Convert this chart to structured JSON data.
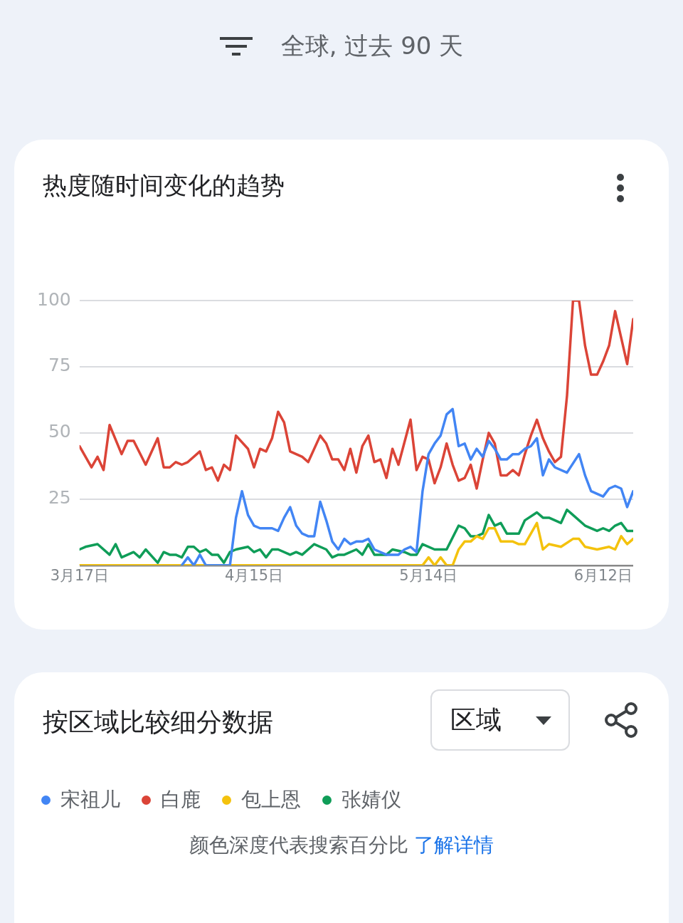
{
  "chart_data": {
    "type": "line",
    "title": "热度随时间变化的趋势",
    "subtitle": "全球, 过去 90 天",
    "annotations": [
      "按区域比较细分数据",
      "区域",
      "颜色深度代表搜索百分比",
      "了解详情"
    ],
    "xlim": [
      "--03-17",
      "--06-17"
    ],
    "xticks": [
      {
        "value": "--03-17",
        "label": "3月17日"
      },
      {
        "value": "--04-15",
        "label": "4月15日"
      },
      {
        "value": "--05-14",
        "label": "5月14日"
      },
      {
        "value": "--06-12",
        "label": "6月12日"
      }
    ],
    "ylim": [
      0,
      100
    ],
    "yticks": [
      {
        "value": 0,
        "label": null
      },
      25,
      50,
      75,
      100
    ],
    "grid": "y",
    "legend": "bottom",
    "marker": "none",
    "series": [
      {
        "name": "宋祖儿",
        "color": "#4285f4",
        "x": [
          "--04-03",
          "--04-04",
          "--04-05",
          "--04-06",
          "--04-07",
          "--04-11",
          "--04-12",
          "--04-13",
          "--04-14",
          "--04-15",
          "--04-16",
          "--04-17",
          "--04-18",
          "--04-19",
          "--04-20",
          "--04-21",
          "--04-22",
          "--04-23",
          "--04-24",
          "--04-25",
          "--04-26",
          "--04-27",
          "--04-28",
          "--04-29",
          "--04-30",
          "--05-01",
          "--05-02",
          "--05-03",
          "--05-04",
          "--05-05",
          "--05-07",
          "--05-09",
          "--05-10",
          "--05-11",
          "--05-12",
          "--05-13",
          "--05-14",
          "--05-15",
          "--05-16",
          "--05-17",
          "--05-18",
          "--05-19",
          "--05-20",
          "--05-21",
          "--05-22",
          "--05-23",
          "--05-24",
          "--05-25",
          "--05-26",
          "--05-27",
          "--05-28",
          "--05-29",
          "--05-30",
          "--05-31",
          "--06-01",
          "--06-02",
          "--06-03",
          "--06-04",
          "--06-06",
          "--06-08",
          "--06-09",
          "--06-10",
          "--06-12",
          "--06-13",
          "--06-14",
          "--06-15",
          "--06-16",
          "--06-17"
        ],
        "values": [
          0,
          3,
          0,
          4,
          0,
          0,
          18,
          28,
          19,
          15,
          14,
          14,
          14,
          13,
          18,
          22,
          15,
          12,
          11,
          11,
          24,
          17,
          9,
          6,
          10,
          8,
          9,
          9,
          10,
          6,
          4,
          4,
          6,
          7,
          5,
          28,
          42,
          46,
          49,
          57,
          59,
          45,
          46,
          40,
          44,
          41,
          47,
          44,
          40,
          40,
          42,
          42,
          44,
          45,
          48,
          34,
          40,
          37,
          35,
          42,
          34,
          28,
          26,
          29,
          30,
          29,
          22,
          28
        ]
      },
      {
        "name": "白鹿",
        "color": "#db4437",
        "x": [
          "--03-17",
          "--03-19",
          "--03-20",
          "--03-21",
          "--03-22",
          "--03-24",
          "--03-25",
          "--03-26",
          "--03-28",
          "--03-30",
          "--03-31",
          "--04-01",
          "--04-02",
          "--04-03",
          "--04-04",
          "--04-06",
          "--04-07",
          "--04-08",
          "--04-09",
          "--04-10",
          "--04-11",
          "--04-12",
          "--04-14",
          "--04-15",
          "--04-16",
          "--04-17",
          "--04-18",
          "--04-19",
          "--04-20",
          "--04-21",
          "--04-23",
          "--04-24",
          "--04-26",
          "--04-27",
          "--04-28",
          "--04-29",
          "--04-30",
          "--05-01",
          "--05-02",
          "--05-03",
          "--05-04",
          "--05-05",
          "--05-06",
          "--05-07",
          "--05-08",
          "--05-09",
          "--05-11",
          "--05-12",
          "--05-13",
          "--05-14",
          "--05-15",
          "--05-16",
          "--05-17",
          "--05-18",
          "--05-19",
          "--05-20",
          "--05-21",
          "--05-22",
          "--05-23",
          "--05-24",
          "--05-25",
          "--05-26",
          "--05-27",
          "--05-28",
          "--05-29",
          "--05-30",
          "--05-31",
          "--06-01",
          "--06-02",
          "--06-03",
          "--06-04",
          "--06-05",
          "--06-06",
          "--06-07",
          "--06-08",
          "--06-09",
          "--06-10",
          "--06-11",
          "--06-12",
          "--06-13",
          "--06-14",
          "--06-15",
          "--06-16",
          "--06-17"
        ],
        "values": [
          45,
          37,
          41,
          36,
          53,
          42,
          47,
          47,
          38,
          48,
          37,
          37,
          39,
          38,
          39,
          43,
          36,
          37,
          32,
          38,
          36,
          49,
          44,
          37,
          44,
          43,
          48,
          58,
          54,
          43,
          41,
          39,
          49,
          46,
          40,
          40,
          36,
          44,
          35,
          45,
          49,
          39,
          40,
          33,
          44,
          38,
          55,
          36,
          41,
          40,
          31,
          37,
          46,
          38,
          32,
          33,
          38,
          29,
          40,
          50,
          46,
          34,
          34,
          36,
          34,
          42,
          49,
          55,
          48,
          43,
          39,
          41,
          64,
          100,
          100,
          83,
          72,
          72,
          77,
          83,
          96,
          86,
          76,
          93
        ]
      },
      {
        "name": "包上恩",
        "color": "#f4c20d",
        "x": [
          "--03-17",
          "--05-13",
          "--05-14",
          "--05-15",
          "--05-16",
          "--05-17",
          "--05-18",
          "--05-19",
          "--05-20",
          "--05-21",
          "--05-22",
          "--05-23",
          "--05-24",
          "--05-25",
          "--05-26",
          "--05-28",
          "--05-29",
          "--05-30",
          "--06-01",
          "--06-02",
          "--06-03",
          "--06-05",
          "--06-07",
          "--06-08",
          "--06-09",
          "--06-11",
          "--06-13",
          "--06-14",
          "--06-15",
          "--06-16",
          "--06-17"
        ],
        "values": [
          0,
          0,
          3,
          0,
          3,
          0,
          0,
          6,
          9,
          9,
          11,
          10,
          14,
          14,
          9,
          9,
          8,
          8,
          16,
          6,
          8,
          7,
          10,
          10,
          7,
          6,
          7,
          6,
          11,
          8,
          10
        ]
      },
      {
        "name": "张婧仪",
        "color": "#0f9d58",
        "x": [
          "--03-17",
          "--03-18",
          "--03-20",
          "--03-22",
          "--03-23",
          "--03-24",
          "--03-26",
          "--03-27",
          "--03-28",
          "--03-30",
          "--03-31",
          "--04-01",
          "--04-02",
          "--04-03",
          "--04-04",
          "--04-05",
          "--04-06",
          "--04-07",
          "--04-08",
          "--04-09",
          "--04-10",
          "--04-11",
          "--04-12",
          "--04-14",
          "--04-15",
          "--04-16",
          "--04-17",
          "--04-18",
          "--04-19",
          "--04-21",
          "--04-22",
          "--04-23",
          "--04-25",
          "--04-27",
          "--04-28",
          "--04-29",
          "--04-30",
          "--05-02",
          "--05-03",
          "--05-04",
          "--05-05",
          "--05-07",
          "--05-08",
          "--05-10",
          "--05-11",
          "--05-12",
          "--05-13",
          "--05-15",
          "--05-17",
          "--05-19",
          "--05-20",
          "--05-21",
          "--05-22",
          "--05-23",
          "--05-24",
          "--05-25",
          "--05-26",
          "--05-27",
          "--05-29",
          "--05-30",
          "--06-01",
          "--06-02",
          "--06-03",
          "--06-05",
          "--06-06",
          "--06-07",
          "--06-09",
          "--06-11",
          "--06-12",
          "--06-13",
          "--06-14",
          "--06-15",
          "--06-16",
          "--06-17"
        ],
        "values": [
          6,
          7,
          8,
          4,
          8,
          3,
          5,
          3,
          6,
          1,
          5,
          4,
          4,
          3,
          7,
          7,
          5,
          6,
          4,
          4,
          1,
          5,
          6,
          7,
          5,
          6,
          3,
          6,
          6,
          4,
          5,
          4,
          8,
          6,
          3,
          4,
          4,
          6,
          4,
          8,
          4,
          4,
          6,
          5,
          4,
          4,
          8,
          6,
          6,
          15,
          14,
          11,
          11,
          12,
          19,
          15,
          16,
          12,
          12,
          17,
          20,
          18,
          18,
          16,
          21,
          19,
          15,
          13,
          14,
          13,
          15,
          16,
          13,
          13
        ]
      }
    ]
  }
}
